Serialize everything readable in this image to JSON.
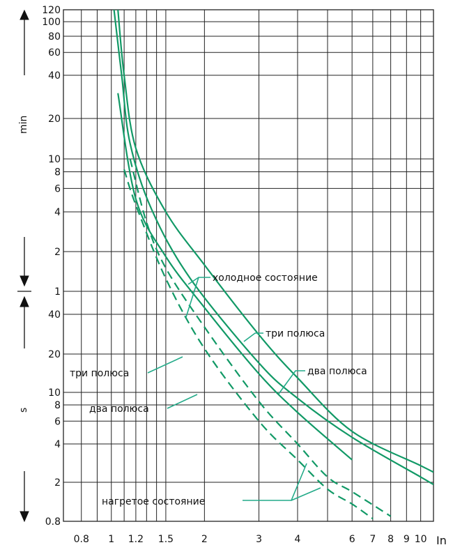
{
  "chart_data": {
    "type": "line",
    "x_axis": {
      "label": "In",
      "scale": "log",
      "range": [
        0.7,
        11
      ],
      "tick_labels": [
        "0.8",
        "1",
        "1.2",
        "1.5",
        "2",
        "3",
        "4",
        "6",
        "7",
        "8",
        "9",
        "10"
      ],
      "gridlines": [
        0.8,
        0.9,
        1,
        1.1,
        1.2,
        1.3,
        1.4,
        1.5,
        2,
        3,
        4,
        5,
        6,
        7,
        8,
        9,
        10
      ]
    },
    "y_axis": {
      "scale": "log",
      "sections": [
        {
          "unit_label": "min",
          "tick_labels": [
            "120",
            "100",
            "80",
            "60",
            "40",
            "20",
            "10",
            "8",
            "6",
            "4",
            "2",
            "1"
          ]
        },
        {
          "unit_label": "s",
          "tick_labels": [
            "40",
            "20",
            "10",
            "8",
            "6",
            "4",
            "2",
            "0.8"
          ]
        }
      ]
    },
    "series": [
      {
        "style": "solid",
        "points": [
          [
            1.05,
            7200
          ],
          [
            1.1,
            2400
          ],
          [
            1.2,
            720
          ],
          [
            1.5,
            240
          ],
          [
            2,
            95
          ],
          [
            3,
            28
          ],
          [
            4,
            13
          ],
          [
            6,
            5
          ],
          [
            10,
            2.7
          ],
          [
            11,
            2.4
          ]
        ]
      },
      {
        "style": "solid",
        "points": [
          [
            1.02,
            7200
          ],
          [
            1.08,
            2400
          ],
          [
            1.15,
            780
          ],
          [
            1.35,
            250
          ],
          [
            1.8,
            75
          ],
          [
            3,
            17
          ],
          [
            4,
            9
          ],
          [
            6,
            4.5
          ],
          [
            10,
            2.2
          ],
          [
            11,
            1.9
          ]
        ]
      },
      {
        "style": "solid",
        "points": [
          [
            1.05,
            1800
          ],
          [
            1.2,
            300
          ],
          [
            1.5,
            110
          ],
          [
            2,
            45
          ],
          [
            3,
            14
          ],
          [
            4,
            7
          ],
          [
            6,
            3
          ]
        ]
      },
      {
        "style": "dashed",
        "points": [
          [
            1.15,
            600
          ],
          [
            1.3,
            200
          ],
          [
            1.5,
            90
          ],
          [
            2,
            32
          ],
          [
            3,
            8.5
          ],
          [
            4,
            4
          ],
          [
            5,
            2.2
          ],
          [
            6,
            1.6
          ],
          [
            8,
            0.9
          ]
        ]
      },
      {
        "style": "dashed",
        "points": [
          [
            1.1,
            500
          ],
          [
            1.2,
            270
          ],
          [
            1.5,
            75
          ],
          [
            2,
            22
          ],
          [
            3,
            6
          ],
          [
            4,
            3
          ],
          [
            5,
            1.7
          ],
          [
            6,
            1.2
          ],
          [
            7,
            0.85
          ]
        ]
      }
    ],
    "annotations": [
      {
        "text": "холодное состояние"
      },
      {
        "text": "три полюса"
      },
      {
        "text": "два полюса"
      },
      {
        "text": "три полюса"
      },
      {
        "text": "два полюса"
      },
      {
        "text": "нагретое состояние"
      }
    ],
    "grid": true,
    "colors": {
      "curve": "#119966",
      "pointer": "#22aa88",
      "grid": "#222222"
    }
  }
}
